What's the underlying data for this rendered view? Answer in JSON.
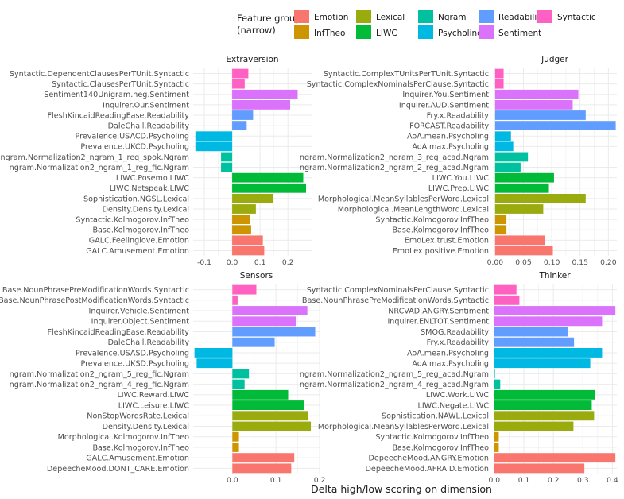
{
  "chart_data": {
    "type": "bar",
    "orientation": "horizontal",
    "xlabel": "Delta high/low scoring on dimension",
    "legend": {
      "title_lines": [
        "Feature group",
        "(narrow)"
      ],
      "position": "top",
      "items": [
        {
          "name": "Emotion",
          "color": "#F8766D"
        },
        {
          "name": "InfTheo",
          "color": "#CD9600"
        },
        {
          "name": "Lexical",
          "color": "#9AAB0E"
        },
        {
          "name": "LIWC",
          "color": "#00BA38"
        },
        {
          "name": "Ngram",
          "color": "#00C19F"
        },
        {
          "name": "Psycholing",
          "color": "#00B9E3"
        },
        {
          "name": "Readability",
          "color": "#619CFF"
        },
        {
          "name": "Sentiment",
          "color": "#DB72FB"
        },
        {
          "name": "Syntactic",
          "color": "#FF61C3"
        }
      ]
    },
    "panels": [
      {
        "title": "Extraversion",
        "xlim": [
          -0.14,
          0.285
        ],
        "xticks": [
          -0.1,
          0.0,
          0.1,
          0.2
        ],
        "xtick_labels": [
          "-0.1",
          "0.0",
          "0.1",
          "0.2"
        ],
        "bars": [
          {
            "label": "Syntactic.DependentClausesPerTUnit.Syntactic",
            "value": 0.058,
            "group": "Syntactic"
          },
          {
            "label": "Syntactic.ClausesPerTUnit.Syntactic",
            "value": 0.045,
            "group": "Syntactic"
          },
          {
            "label": "Sentiment140Unigram.neg.Sentiment",
            "value": 0.235,
            "group": "Sentiment"
          },
          {
            "label": "Inquirer.Our.Sentiment",
            "value": 0.208,
            "group": "Sentiment"
          },
          {
            "label": "FleshKincaidReadingEase.Readability",
            "value": 0.075,
            "group": "Readability"
          },
          {
            "label": "DaleChall.Readability",
            "value": 0.052,
            "group": "Readability"
          },
          {
            "label": "Prevalence.USACD.Psycholing",
            "value": -0.132,
            "group": "Psycholing"
          },
          {
            "label": "Prevalence.UKCD.Psycholing",
            "value": -0.132,
            "group": "Psycholing"
          },
          {
            "label": "ngram.Normalization2_ngram_1_reg_spok.Ngram",
            "value": -0.04,
            "group": "Ngram"
          },
          {
            "label": "ngram.Normalization2_ngram_1_reg_fic.Ngram",
            "value": -0.04,
            "group": "Ngram"
          },
          {
            "label": "LIWC.Posemo.LIWC",
            "value": 0.255,
            "group": "LIWC"
          },
          {
            "label": "LIWC.Netspeak.LIWC",
            "value": 0.265,
            "group": "LIWC"
          },
          {
            "label": "Sophistication.NGSL.Lexical",
            "value": 0.148,
            "group": "Lexical"
          },
          {
            "label": "Density.Density.Lexical",
            "value": 0.085,
            "group": "Lexical"
          },
          {
            "label": "Syntactic.Kolmogorov.InfTheo",
            "value": 0.065,
            "group": "InfTheo"
          },
          {
            "label": "Base.Kolmogorov.InfTheo",
            "value": 0.068,
            "group": "InfTheo"
          },
          {
            "label": "GALC.Feelinglove.Emotion",
            "value": 0.11,
            "group": "Emotion"
          },
          {
            "label": "GALC.Amusement.Emotion",
            "value": 0.115,
            "group": "Emotion"
          }
        ]
      },
      {
        "title": "Judger",
        "xlim": [
          -0.004,
          0.215
        ],
        "xticks": [
          0.0,
          0.05,
          0.1,
          0.15,
          0.2
        ],
        "xtick_labels": [
          "0.00",
          "0.05",
          "0.10",
          "0.15",
          "0.20"
        ],
        "bars": [
          {
            "label": "Syntactic.ComplexTUnitsPerTUnit.Syntactic",
            "value": 0.015,
            "group": "Syntactic"
          },
          {
            "label": "Syntactic.ComplexNominalsPerClause.Syntactic",
            "value": 0.015,
            "group": "Syntactic"
          },
          {
            "label": "Inquirer.You.Sentiment",
            "value": 0.147,
            "group": "Sentiment"
          },
          {
            "label": "Inquirer.AUD.Sentiment",
            "value": 0.137,
            "group": "Sentiment"
          },
          {
            "label": "Fry.x.Readability",
            "value": 0.16,
            "group": "Readability"
          },
          {
            "label": "FORCAST.Readability",
            "value": 0.213,
            "group": "Readability"
          },
          {
            "label": "AoA.mean.Psycholing",
            "value": 0.028,
            "group": "Psycholing"
          },
          {
            "label": "AoA.max.Psycholing",
            "value": 0.032,
            "group": "Psycholing"
          },
          {
            "label": "ngram.Normalization2_ngram_3_reg_acad.Ngram",
            "value": 0.058,
            "group": "Ngram"
          },
          {
            "label": "ngram.Normalization2_ngram_2_reg_acad.Ngram",
            "value": 0.045,
            "group": "Ngram"
          },
          {
            "label": "LIWC.You.LIWC",
            "value": 0.104,
            "group": "LIWC"
          },
          {
            "label": "LIWC.Prep.LIWC",
            "value": 0.095,
            "group": "LIWC"
          },
          {
            "label": "Morphological.MeanSyllablesPerWord.Lexical",
            "value": 0.16,
            "group": "Lexical"
          },
          {
            "label": "Morphological.MeanLengthWord.Lexical",
            "value": 0.085,
            "group": "Lexical"
          },
          {
            "label": "Syntactic.Kolmogorov.InfTheo",
            "value": 0.02,
            "group": "InfTheo"
          },
          {
            "label": "Base.Kolmogorov.InfTheo",
            "value": 0.02,
            "group": "InfTheo"
          },
          {
            "label": "EmoLex.trust.Emotion",
            "value": 0.088,
            "group": "Emotion"
          },
          {
            "label": "EmoLex.positive.Emotion",
            "value": 0.102,
            "group": "Emotion"
          }
        ]
      },
      {
        "title": "Sensors",
        "xlim": [
          -0.09,
          0.2
        ],
        "xticks": [
          0.0,
          0.1,
          0.2
        ],
        "xtick_labels": [
          "0.0",
          "0.1",
          "0.2"
        ],
        "bars": [
          {
            "label": "Base.NounPhrasePreModificationWords.Syntactic",
            "value": 0.055,
            "group": "Syntactic"
          },
          {
            "label": "Base.NounPhrasePostModificationWords.Syntactic",
            "value": 0.012,
            "group": "Syntactic"
          },
          {
            "label": "Inquirer.Vehicle.Sentiment",
            "value": 0.172,
            "group": "Sentiment"
          },
          {
            "label": "Inquirer.Object.Sentiment",
            "value": 0.146,
            "group": "Sentiment"
          },
          {
            "label": "FleshKincaidReadingEase.Readability",
            "value": 0.19,
            "group": "Readability"
          },
          {
            "label": "DaleChall.Readability",
            "value": 0.097,
            "group": "Readability"
          },
          {
            "label": "Prevalence.USASD.Psycholing",
            "value": -0.087,
            "group": "Psycholing"
          },
          {
            "label": "Prevalence.UKSD.Psycholing",
            "value": -0.082,
            "group": "Psycholing"
          },
          {
            "label": "ngram.Normalization2_ngram_5_reg_fic.Ngram",
            "value": 0.038,
            "group": "Ngram"
          },
          {
            "label": "ngram.Normalization2_ngram_4_reg_fic.Ngram",
            "value": 0.028,
            "group": "Ngram"
          },
          {
            "label": "LIWC.Reward.LIWC",
            "value": 0.128,
            "group": "LIWC"
          },
          {
            "label": "LIWC.Leisure.LIWC",
            "value": 0.165,
            "group": "LIWC"
          },
          {
            "label": "NonStopWordsRate.Lexical",
            "value": 0.173,
            "group": "Lexical"
          },
          {
            "label": "Density.Density.Lexical",
            "value": 0.18,
            "group": "Lexical"
          },
          {
            "label": "Morphological.Kolmogorov.InfTheo",
            "value": 0.015,
            "group": "InfTheo"
          },
          {
            "label": "Base.Kolmogorov.InfTheo",
            "value": 0.015,
            "group": "InfTheo"
          },
          {
            "label": "GALC.Amusement.Emotion",
            "value": 0.142,
            "group": "Emotion"
          },
          {
            "label": "DepeecheMood.DONT_CARE.Emotion",
            "value": 0.135,
            "group": "Emotion"
          }
        ]
      },
      {
        "title": "Thinker",
        "xlim": [
          -0.005,
          0.415
        ],
        "xticks": [
          0.0,
          0.1,
          0.2,
          0.3,
          0.4
        ],
        "xtick_labels": [
          "0.0",
          "0.1",
          "0.2",
          "0.3",
          "0.4"
        ],
        "bars": [
          {
            "label": "Syntactic.ComplexNominalsPerClause.Syntactic",
            "value": 0.075,
            "group": "Syntactic"
          },
          {
            "label": "Base.NounPhrasePreModificationWords.Syntactic",
            "value": 0.085,
            "group": "Syntactic"
          },
          {
            "label": "NRCVAD.ANGRY.Sentiment",
            "value": 0.41,
            "group": "Sentiment"
          },
          {
            "label": "Inquirer.ENLTOT.Sentiment",
            "value": 0.365,
            "group": "Sentiment"
          },
          {
            "label": "SMOG.Readability",
            "value": 0.248,
            "group": "Readability"
          },
          {
            "label": "Fry.x.Readability",
            "value": 0.27,
            "group": "Readability"
          },
          {
            "label": "AoA.mean.Psycholing",
            "value": 0.365,
            "group": "Psycholing"
          },
          {
            "label": "AoA.max.Psycholing",
            "value": 0.325,
            "group": "Psycholing"
          },
          {
            "label": "ngram.Normalization2_ngram_5_reg_acad.Ngram",
            "value": 0.002,
            "group": "Ngram"
          },
          {
            "label": "ngram.Normalization2_ngram_4_reg_acad.Ngram",
            "value": 0.02,
            "group": "Ngram"
          },
          {
            "label": "LIWC.Work.LIWC",
            "value": 0.342,
            "group": "LIWC"
          },
          {
            "label": "LIWC.Negate.LIWC",
            "value": 0.33,
            "group": "LIWC"
          },
          {
            "label": "Sophistication.NAWL.Lexical",
            "value": 0.338,
            "group": "Lexical"
          },
          {
            "label": "Morphological.MeanSyllablesPerWord.Lexical",
            "value": 0.268,
            "group": "Lexical"
          },
          {
            "label": "Syntactic.Kolmogorov.InfTheo",
            "value": 0.015,
            "group": "InfTheo"
          },
          {
            "label": "Base.Kolmogorov.InfTheo",
            "value": 0.015,
            "group": "InfTheo"
          },
          {
            "label": "DepeecheMood.ANGRY.Emotion",
            "value": 0.41,
            "group": "Emotion"
          },
          {
            "label": "DepeecheMood.AFRAID.Emotion",
            "value": 0.305,
            "group": "Emotion"
          }
        ]
      }
    ]
  }
}
